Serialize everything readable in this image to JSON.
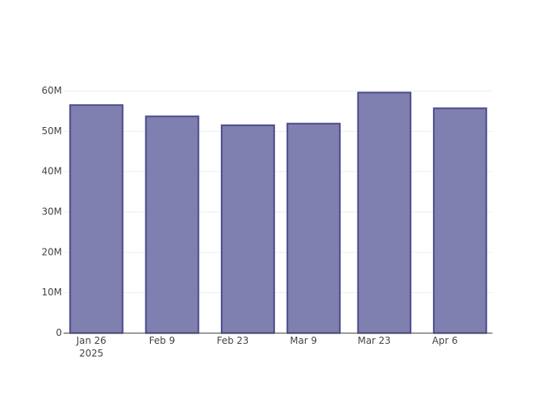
{
  "chart_data": {
    "type": "bar",
    "x": [
      "2025-01-27",
      "2025-02-11",
      "2025-02-26",
      "2025-03-11",
      "2025-03-25",
      "2025-04-09"
    ],
    "values": [
      56500000,
      53700000,
      51500000,
      51900000,
      59600000,
      55700000
    ],
    "color": "#7f7fb0",
    "edge_color": "#4b4b8c",
    "xlim": [
      "2025-01-20T12:00:00Z",
      "2025-04-15T10:00:00Z"
    ],
    "xticks": [
      {
        "value": "2025-01-26",
        "label": "Jan 26"
      },
      {
        "value": "2025-02-09",
        "label": "Feb 9"
      },
      {
        "value": "2025-02-23",
        "label": "Feb 23"
      },
      {
        "value": "2025-03-09",
        "label": "Mar 9"
      },
      {
        "value": "2025-03-23",
        "label": "Mar 23"
      },
      {
        "value": "2025-04-06",
        "label": "Apr 6"
      }
    ],
    "x_year_label": "2025",
    "ylim": [
      0,
      60000000
    ],
    "yticks": [
      0,
      {
        "value": 10000000,
        "label": "10M"
      },
      {
        "value": 20000000,
        "label": "20M"
      },
      {
        "value": 30000000,
        "label": "30M"
      },
      {
        "value": 40000000,
        "label": "40M"
      },
      {
        "value": 50000000,
        "label": "50M"
      },
      {
        "value": 60000000,
        "label": "60M"
      }
    ],
    "grid": true
  }
}
